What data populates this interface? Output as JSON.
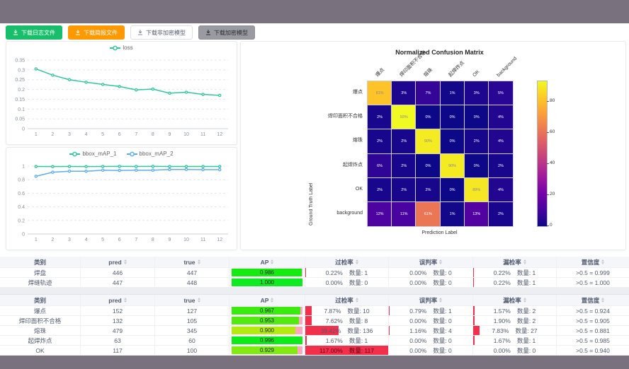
{
  "toolbar": {
    "buttons": [
      {
        "label": "下载日志文件",
        "style": "green"
      },
      {
        "label": "下载简报文件",
        "style": "orange"
      },
      {
        "label": "下载非加密模型",
        "style": "white"
      },
      {
        "label": "下载加密模型",
        "style": "gray"
      }
    ]
  },
  "colors": {
    "teal_series": "#2ec7a0",
    "blue_series": "#5cadf2",
    "ap_remainder_pink": "#ffa6c0",
    "rate_bar_red": "#f2304b",
    "page_frame": "#79727e"
  },
  "chart_data": [
    {
      "type": "line",
      "title": "",
      "legend": [
        "loss"
      ],
      "x": [
        1,
        2,
        3,
        4,
        5,
        6,
        7,
        8,
        9,
        10,
        11,
        12
      ],
      "series": [
        {
          "name": "loss",
          "color": "#2ec7a0",
          "values": [
            0.305,
            0.273,
            0.25,
            0.237,
            0.226,
            0.215,
            0.198,
            0.202,
            0.181,
            0.186,
            0.175,
            0.17
          ]
        }
      ],
      "ylim": [
        0,
        0.35
      ],
      "yticks": [
        0,
        0.05,
        0.1,
        0.15,
        0.2,
        0.25,
        0.3,
        0.35
      ],
      "grid": true,
      "legend_position": "top"
    },
    {
      "type": "line",
      "title": "",
      "legend": [
        "bbox_mAP_1",
        "bbox_mAP_2"
      ],
      "x": [
        1,
        2,
        3,
        4,
        5,
        6,
        7,
        8,
        9,
        10,
        11,
        12
      ],
      "series": [
        {
          "name": "bbox_mAP_1",
          "color": "#2ec7a0",
          "values": [
            0.995,
            0.993,
            0.995,
            0.993,
            0.995,
            0.996,
            0.995,
            0.996,
            0.995,
            0.995,
            0.995,
            0.995
          ]
        },
        {
          "name": "bbox_mAP_2",
          "color": "#5cadf2",
          "values": [
            0.85,
            0.91,
            0.925,
            0.924,
            0.94,
            0.936,
            0.94,
            0.94,
            0.95,
            0.951,
            0.948,
            0.948
          ]
        }
      ],
      "ylim": [
        0,
        1
      ],
      "yticks": [
        0,
        0.2,
        0.4,
        0.6,
        0.8,
        1
      ],
      "grid": true,
      "legend_position": "top"
    },
    {
      "type": "heatmap",
      "title": "Normalized Confusion Matrix",
      "xlabel": "Prediction Label",
      "ylabel": "Ground Truth Label",
      "labels": [
        "爆点",
        "焊印面积不合格",
        "熔珠",
        "起焊炸点",
        "OK",
        "background"
      ],
      "matrix": [
        [
          81,
          3,
          7,
          1,
          3,
          5
        ],
        [
          2,
          93,
          0,
          0,
          0,
          4
        ],
        [
          2,
          2,
          90,
          0,
          2,
          4
        ],
        [
          6,
          2,
          0,
          90,
          0,
          2
        ],
        [
          2,
          2,
          2,
          0,
          89,
          4
        ],
        [
          12,
          11,
          61,
          1,
          13,
          2
        ]
      ],
      "unit": "%",
      "vmax": 93,
      "colorbar_ticks": [
        0,
        20,
        40,
        60,
        80
      ],
      "colormap": "plasma",
      "legend_position": "right"
    }
  ],
  "tables": {
    "headers": [
      "类别",
      "pred",
      "true",
      "AP",
      "过检率",
      "误判率",
      "漏检率",
      "置信度"
    ],
    "sortable": [
      false,
      true,
      true,
      true,
      true,
      true,
      true,
      true
    ],
    "quantity_label": "数量:",
    "table1": {
      "rows": [
        {
          "name": "焊盘",
          "pred": "446",
          "true": "447",
          "ap": "0.986",
          "over": {
            "pct": "0.22%",
            "n": "1"
          },
          "mis": {
            "pct": "0.00%",
            "n": "0"
          },
          "miss": {
            "pct": "0.22%",
            "n": "1"
          },
          "conf": ">0.5 = 0.999"
        },
        {
          "name": "焊缝轨迹",
          "pred": "447",
          "true": "448",
          "ap": "1.000",
          "over": {
            "pct": "0.00%",
            "n": "0"
          },
          "mis": {
            "pct": "0.00%",
            "n": "0"
          },
          "miss": {
            "pct": "0.22%",
            "n": "1"
          },
          "conf": ">0.5 = 1.000"
        }
      ]
    },
    "table2": {
      "rows": [
        {
          "name": "爆点",
          "pred": "152",
          "true": "127",
          "ap": "0.967",
          "over": {
            "pct": "7.87%",
            "n": "10"
          },
          "mis": {
            "pct": "0.79%",
            "n": "1"
          },
          "miss": {
            "pct": "1.57%",
            "n": "2"
          },
          "conf": ">0.5 = 0.924"
        },
        {
          "name": "焊印面积不合格",
          "pred": "132",
          "true": "105",
          "ap": "0.953",
          "over": {
            "pct": "7.62%",
            "n": "8"
          },
          "mis": {
            "pct": "0.00%",
            "n": "0"
          },
          "miss": {
            "pct": "1.90%",
            "n": "2"
          },
          "conf": ">0.5 = 0.905"
        },
        {
          "name": "熔珠",
          "pred": "479",
          "true": "345",
          "ap": "0.900",
          "over": {
            "pct": "39.42%",
            "n": "136"
          },
          "mis": {
            "pct": "1.16%",
            "n": "4"
          },
          "miss": {
            "pct": "7.83%",
            "n": "27"
          },
          "conf": ">0.5 = 0.881"
        },
        {
          "name": "起焊炸点",
          "pred": "63",
          "true": "60",
          "ap": "0.996",
          "over": {
            "pct": "1.67%",
            "n": "1"
          },
          "mis": {
            "pct": "0.00%",
            "n": "0"
          },
          "miss": {
            "pct": "1.67%",
            "n": "1"
          },
          "conf": ">0.5 = 0.985"
        },
        {
          "name": "OK",
          "pred": "117",
          "true": "100",
          "ap": "0.929",
          "over": {
            "pct": "117.00%",
            "n": "117"
          },
          "mis": {
            "pct": "0.00%",
            "n": "0"
          },
          "miss": {
            "pct": "0.00%",
            "n": "0"
          },
          "conf": ">0.5 = 0.940"
        }
      ]
    }
  }
}
